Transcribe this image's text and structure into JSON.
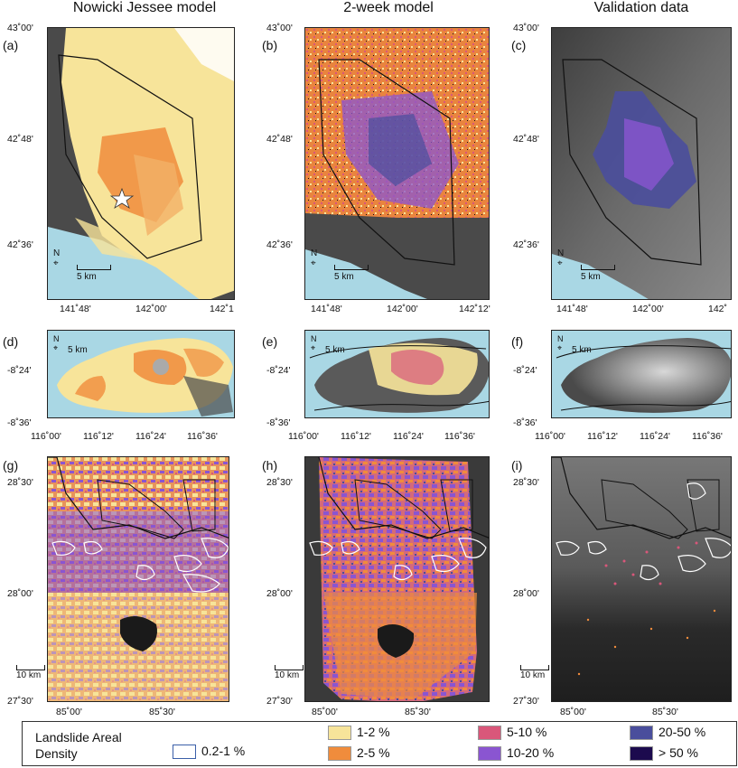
{
  "columns": {
    "col1": "Nowicki Jessee model",
    "col2": "2-week model",
    "col3": "Validation data"
  },
  "panels": {
    "a": "(a)",
    "b": "(b)",
    "c": "(c)",
    "d": "(d)",
    "e": "(e)",
    "f": "(f)",
    "g": "(g)",
    "h": "(h)",
    "i": "(i)"
  },
  "row1": {
    "lat": [
      "43˚00'",
      "42˚48'",
      "42˚36'"
    ],
    "lon_a": [
      "141˚48'",
      "142˚00'",
      "142˚1"
    ],
    "lon_b": [
      "141˚48'",
      "142˚00'",
      "142˚12'"
    ],
    "lon_c": [
      "141˚48'",
      "142˚00'",
      "142˚"
    ],
    "scale": "5 km",
    "north": "N"
  },
  "row2": {
    "lat": [
      "-8˚24'",
      "-8˚36'"
    ],
    "lon": [
      "116˚00'",
      "116˚12'",
      "116˚24'",
      "116˚36'"
    ],
    "scale": "5 km",
    "north": "N"
  },
  "row3": {
    "lat": [
      "28˚30'",
      "28˚00'",
      "27˚30'"
    ],
    "lon": [
      "85˚00'",
      "85˚30'"
    ],
    "scale": "10 km",
    "north": "N"
  },
  "legend": {
    "title_line1": "Landslide Areal",
    "title_line2": "Density",
    "items": [
      {
        "label": "0.2-1 %",
        "color": "#ffffff",
        "border": "#3b5fa8"
      },
      {
        "label": "1-2 %",
        "color": "#f7e49a",
        "border": "#999999"
      },
      {
        "label": "2-5 %",
        "color": "#f08c3c",
        "border": "#999999"
      },
      {
        "label": "5-10 %",
        "color": "#d9577a",
        "border": "#999999"
      },
      {
        "label": "10-20 %",
        "color": "#8a55d1",
        "border": "#999999"
      },
      {
        "label": "20-50 %",
        "color": "#4a4e9c",
        "border": "#999999"
      },
      {
        "label": "> 50 %",
        "color": "#1c0a4e",
        "border": "#999999"
      }
    ]
  },
  "colors": {
    "sea": "#a9d7e4",
    "terrain": "#4a4a4a",
    "c1": "#f7e49a",
    "c2": "#f08c3c",
    "c3": "#d9577a",
    "c4": "#8a55d1",
    "c5": "#4a4e9c",
    "c6": "#1c0a4e"
  }
}
